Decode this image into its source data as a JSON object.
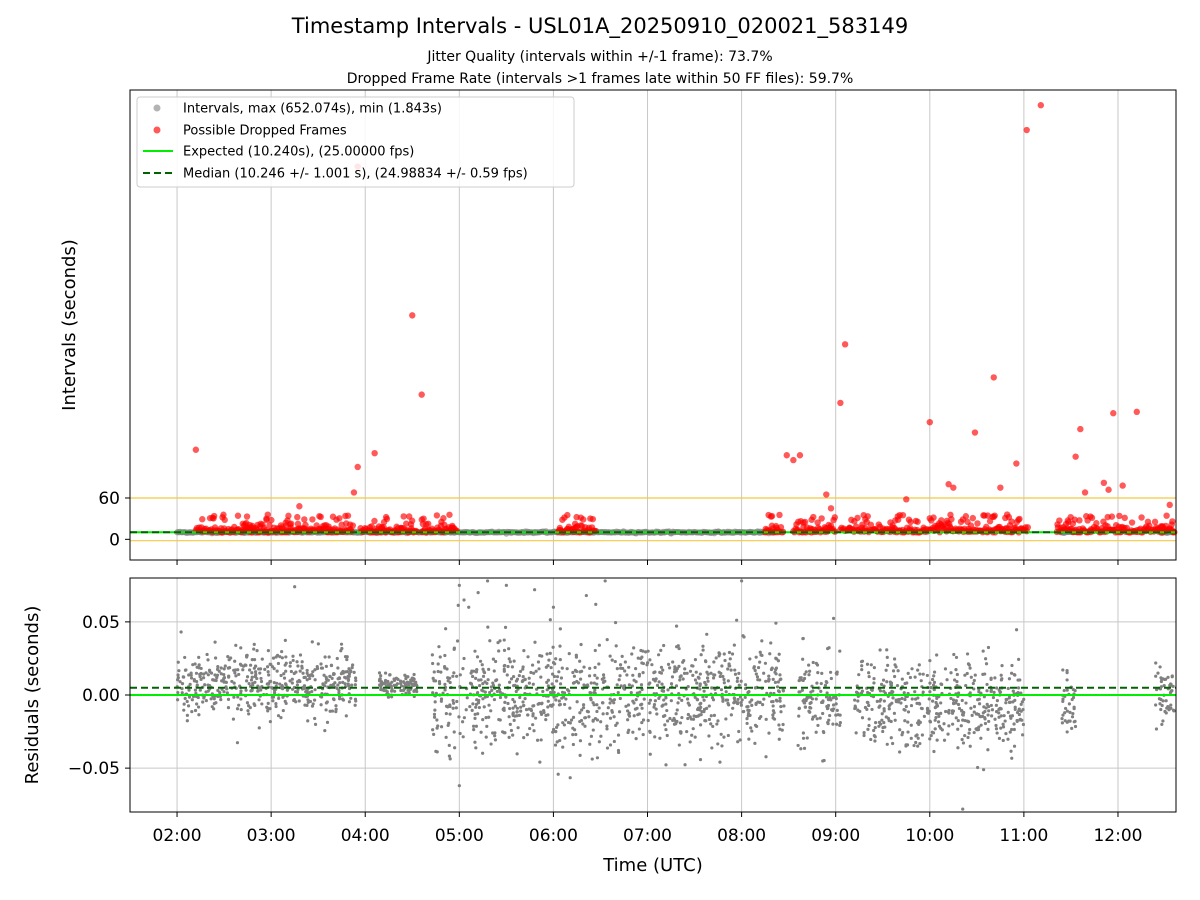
{
  "title": "Timestamp Intervals - USL01A_20250910_020021_583149",
  "subtitle_1": "Jitter Quality (intervals within +/-1 frame): 73.7%",
  "subtitle_2": "Dropped Frame Rate (intervals >1 frames late within 50 FF files): 59.7%",
  "colors": {
    "interval": "#808080",
    "dropped": "#ff0000",
    "expected": "#00ee00",
    "median": "#006400",
    "threshold": "#f5c842",
    "grid": "#c8c8c8"
  },
  "chart_data": [
    {
      "type": "scatter",
      "ylabel": "Intervals (seconds)",
      "yticks": [
        0,
        60
      ],
      "ylim": [
        -30,
        652.074
      ],
      "grid": "vertical",
      "legend_position": "upper-left",
      "legend": [
        {
          "label": "Intervals, max (652.074s), min (1.843s)",
          "marker": "gray-dot"
        },
        {
          "label": "Possible Dropped Frames",
          "marker": "red-dot"
        },
        {
          "label": "Expected (10.240s), (25.00000 fps)",
          "marker": "green-line"
        },
        {
          "label": "Median (10.246 +/- 1.001 s), (24.98834 +/- 0.59 fps)",
          "marker": "dashed-darkgreen-line"
        }
      ],
      "expected": 10.24,
      "median": 10.246,
      "threshold_lines": [
        -2.0,
        60
      ],
      "normal_intervals_band": [
        [
          2.0,
          8.35
        ],
        [
          11.4,
          11.6
        ],
        [
          12.45,
          12.6
        ]
      ],
      "dropped_frames_outliers": [
        {
          "x": 2.2,
          "y": 130
        },
        {
          "x": 2.95,
          "y": 30
        },
        {
          "x": 3.3,
          "y": 48
        },
        {
          "x": 3.88,
          "y": 68
        },
        {
          "x": 3.92,
          "y": 105
        },
        {
          "x": 3.92,
          "y": 541
        },
        {
          "x": 4.1,
          "y": 125
        },
        {
          "x": 4.2,
          "y": 25
        },
        {
          "x": 4.5,
          "y": 325
        },
        {
          "x": 4.6,
          "y": 210
        },
        {
          "x": 4.62,
          "y": 30
        },
        {
          "x": 8.48,
          "y": 122
        },
        {
          "x": 8.55,
          "y": 115
        },
        {
          "x": 8.62,
          "y": 122
        },
        {
          "x": 8.9,
          "y": 65
        },
        {
          "x": 8.95,
          "y": 45
        },
        {
          "x": 9.05,
          "y": 198
        },
        {
          "x": 9.1,
          "y": 283
        },
        {
          "x": 9.75,
          "y": 58
        },
        {
          "x": 10.0,
          "y": 170
        },
        {
          "x": 10.2,
          "y": 80
        },
        {
          "x": 10.25,
          "y": 75
        },
        {
          "x": 10.48,
          "y": 155
        },
        {
          "x": 10.68,
          "y": 235
        },
        {
          "x": 10.75,
          "y": 75
        },
        {
          "x": 10.92,
          "y": 110
        },
        {
          "x": 11.03,
          "y": 594
        },
        {
          "x": 11.18,
          "y": 630
        },
        {
          "x": 11.55,
          "y": 120
        },
        {
          "x": 11.6,
          "y": 160
        },
        {
          "x": 11.65,
          "y": 68
        },
        {
          "x": 11.85,
          "y": 82
        },
        {
          "x": 11.9,
          "y": 72
        },
        {
          "x": 11.95,
          "y": 183
        },
        {
          "x": 12.05,
          "y": 78
        },
        {
          "x": 12.2,
          "y": 185
        },
        {
          "x": 12.55,
          "y": 50
        }
      ]
    },
    {
      "type": "scatter",
      "xlabel": "Time (UTC)",
      "ylabel": "Residuals (seconds)",
      "xticks": [
        "02:00",
        "03:00",
        "04:00",
        "05:00",
        "06:00",
        "07:00",
        "08:00",
        "09:00",
        "10:00",
        "11:00",
        "12:00"
      ],
      "xlim": [
        "01:30",
        "12:37"
      ],
      "ylim": [
        -0.08,
        0.08
      ],
      "yticks": [
        "0.05",
        "0.00",
        "−0.05"
      ],
      "ytick_values": [
        0.05,
        0.0,
        -0.05
      ],
      "grid": "both",
      "expected_residual": 0.0,
      "median_residual": 0.005,
      "residual_segments": [
        {
          "from": 2.0,
          "to": 3.9,
          "center": 0.008,
          "spread": 0.018
        },
        {
          "from": 4.15,
          "to": 4.55,
          "center": 0.008,
          "spread": 0.006
        },
        {
          "from": 4.7,
          "to": 8.45,
          "center": 0.0,
          "spread": 0.03
        },
        {
          "from": 8.6,
          "to": 9.05,
          "center": -0.005,
          "spread": 0.025
        },
        {
          "from": 9.2,
          "to": 11.0,
          "center": -0.005,
          "spread": 0.025
        },
        {
          "from": 11.4,
          "to": 11.55,
          "center": -0.005,
          "spread": 0.02
        },
        {
          "from": 12.4,
          "to": 12.6,
          "center": 0.0,
          "spread": 0.015
        }
      ],
      "residual_outliers": [
        {
          "x": 5.0,
          "y": 0.075
        },
        {
          "x": 5.05,
          "y": 0.065
        },
        {
          "x": 5.1,
          "y": 0.06
        },
        {
          "x": 5.2,
          "y": 0.07
        },
        {
          "x": 5.3,
          "y": 0.078
        },
        {
          "x": 5.5,
          "y": 0.075
        },
        {
          "x": 5.8,
          "y": 0.072
        },
        {
          "x": 6.0,
          "y": 0.06
        },
        {
          "x": 6.35,
          "y": 0.068
        },
        {
          "x": 6.45,
          "y": 0.062
        },
        {
          "x": 6.55,
          "y": 0.078
        },
        {
          "x": 3.25,
          "y": 0.074
        },
        {
          "x": 8.0,
          "y": 0.078
        },
        {
          "x": 10.35,
          "y": -0.078
        },
        {
          "x": 5.0,
          "y": -0.062
        }
      ]
    }
  ]
}
